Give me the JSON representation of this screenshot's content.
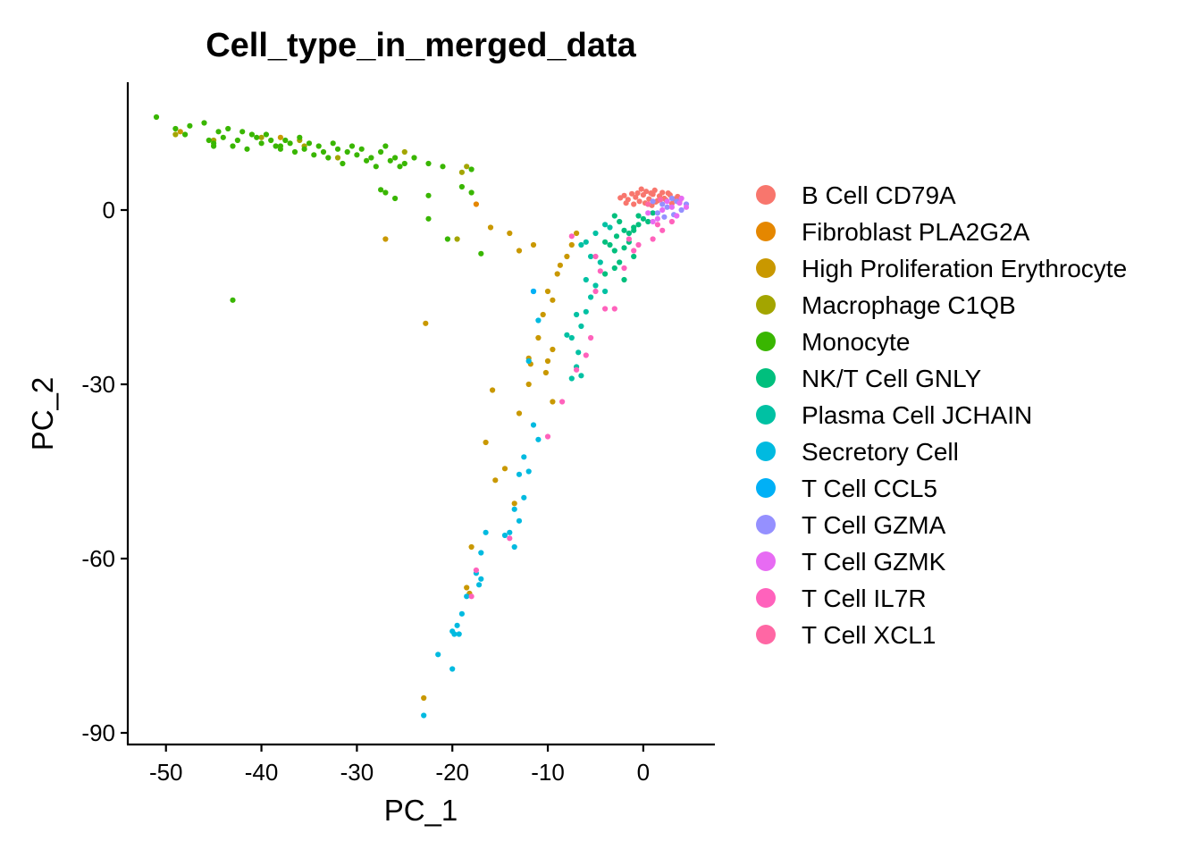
{
  "chart_data": {
    "type": "scatter",
    "title": "Cell_type_in_merged_data",
    "xlabel": "PC_1",
    "ylabel": "PC_2",
    "xlim": [
      -54,
      7.5
    ],
    "ylim": [
      -92,
      22
    ],
    "x_ticks": [
      -50,
      -40,
      -30,
      -20,
      -10,
      0
    ],
    "x_tick_labels": [
      "-50",
      "-40",
      "-30",
      "-20",
      "-10",
      "0"
    ],
    "y_ticks": [
      0,
      -30,
      -60,
      -90
    ],
    "y_tick_labels": [
      "0",
      "-30",
      "-60",
      "-90"
    ],
    "grid": false,
    "legend_position": "right",
    "series": [
      {
        "name": "B Cell CD79A",
        "color": "#F8766D",
        "points": [
          [
            -2.0,
            2.5
          ],
          [
            -1.6,
            1.8
          ],
          [
            -1.2,
            2.8
          ],
          [
            -0.8,
            2.2
          ],
          [
            -0.4,
            1.5
          ],
          [
            0.0,
            2.6
          ],
          [
            0.3,
            3.2
          ],
          [
            0.6,
            1.9
          ],
          [
            1.0,
            2.7
          ],
          [
            1.3,
            1.4
          ],
          [
            1.7,
            2.4
          ],
          [
            2.0,
            3.0
          ],
          [
            2.4,
            1.7
          ],
          [
            2.8,
            2.6
          ],
          [
            3.2,
            1.9
          ],
          [
            3.6,
            2.3
          ],
          [
            -1.8,
            1.2
          ],
          [
            -1.0,
            1.0
          ],
          [
            0.2,
            1.2
          ],
          [
            1.2,
            3.4
          ],
          [
            2.2,
            2.0
          ],
          [
            3.0,
            1.1
          ],
          [
            -0.2,
            3.6
          ],
          [
            0.8,
            2.9
          ],
          [
            1.5,
            1.6
          ],
          [
            2.6,
            2.9
          ],
          [
            -2.4,
            2.1
          ],
          [
            -0.6,
            2.9
          ],
          [
            3.8,
            1.5
          ],
          [
            0.9,
            0.8
          ]
        ]
      },
      {
        "name": "Fibroblast PLA2G2A",
        "color": "#E58700",
        "points": [
          [
            -17.5,
            1.0
          ]
        ]
      },
      {
        "name": "High Proliferation Erythrocyte",
        "color": "#C99800",
        "points": [
          [
            -48.5,
            13.5
          ],
          [
            -38.0,
            12.5
          ],
          [
            -22.8,
            -19.5
          ],
          [
            -27.0,
            -5.0
          ],
          [
            -16.0,
            -3.0
          ],
          [
            -14.0,
            -4.0
          ],
          [
            -13.0,
            -7.0
          ],
          [
            -11.5,
            -6.0
          ],
          [
            -9.0,
            -11.0
          ],
          [
            -8.0,
            -8.0
          ],
          [
            -7.5,
            -6.0
          ],
          [
            -7.0,
            -4.0
          ],
          [
            -10.0,
            -14.0
          ],
          [
            -9.5,
            -15.5
          ],
          [
            -10.5,
            -18.0
          ],
          [
            -11.0,
            -22.0
          ],
          [
            -12.0,
            -25.5
          ],
          [
            -11.8,
            -26.5
          ],
          [
            -10.0,
            -26.0
          ],
          [
            -9.5,
            -24.0
          ],
          [
            -10.2,
            -28.0
          ],
          [
            -15.8,
            -31.0
          ],
          [
            -13.0,
            -35.0
          ],
          [
            -15.5,
            -46.5
          ],
          [
            -14.5,
            -44.5
          ],
          [
            -13.5,
            -50.5
          ],
          [
            -18.0,
            -58.0
          ],
          [
            -18.5,
            -65.0
          ],
          [
            -18.2,
            -66.0
          ],
          [
            -23.0,
            -84.0
          ],
          [
            -9.5,
            -33.0
          ],
          [
            -8.7,
            -9.5
          ],
          [
            -12.0,
            -30.0
          ],
          [
            -16.5,
            -40.0
          ]
        ]
      },
      {
        "name": "Macrophage C1QB",
        "color": "#A3A500",
        "points": [
          [
            -49.0,
            13.0
          ],
          [
            -45.0,
            12.0
          ],
          [
            -40.0,
            12.5
          ],
          [
            -35.5,
            11.0
          ],
          [
            -32.0,
            9.0
          ],
          [
            -25.0,
            10.0
          ],
          [
            -19.0,
            6.5
          ],
          [
            -18.5,
            7.5
          ],
          [
            -19.5,
            -5.0
          ],
          [
            -36.0,
            12.0
          ]
        ]
      },
      {
        "name": "Monocyte",
        "color": "#39B600",
        "points": [
          [
            -51.0,
            16.0
          ],
          [
            -49.0,
            14.0
          ],
          [
            -48.0,
            13.0
          ],
          [
            -47.5,
            14.5
          ],
          [
            -46.0,
            15.0
          ],
          [
            -45.5,
            12.0
          ],
          [
            -45.0,
            11.5
          ],
          [
            -44.5,
            13.5
          ],
          [
            -44.0,
            12.5
          ],
          [
            -43.5,
            14.0
          ],
          [
            -43.0,
            11.0
          ],
          [
            -42.5,
            12.0
          ],
          [
            -42.0,
            13.5
          ],
          [
            -41.5,
            10.5
          ],
          [
            -41.0,
            13.0
          ],
          [
            -40.5,
            12.5
          ],
          [
            -40.0,
            11.5
          ],
          [
            -39.5,
            13.0
          ],
          [
            -39.0,
            12.0
          ],
          [
            -38.5,
            11.0
          ],
          [
            -38.0,
            10.5
          ],
          [
            -37.5,
            12.0
          ],
          [
            -37.0,
            11.5
          ],
          [
            -36.5,
            10.0
          ],
          [
            -36.0,
            12.5
          ],
          [
            -35.5,
            10.5
          ],
          [
            -35.0,
            11.5
          ],
          [
            -34.5,
            9.5
          ],
          [
            -34.0,
            11.0
          ],
          [
            -33.5,
            10.0
          ],
          [
            -33.0,
            9.0
          ],
          [
            -32.5,
            11.5
          ],
          [
            -32.0,
            10.5
          ],
          [
            -31.5,
            8.0
          ],
          [
            -31.0,
            10.0
          ],
          [
            -30.5,
            11.0
          ],
          [
            -30.0,
            9.5
          ],
          [
            -29.5,
            10.5
          ],
          [
            -29.0,
            8.5
          ],
          [
            -28.5,
            9.0
          ],
          [
            -28.0,
            7.5
          ],
          [
            -27.5,
            10.0
          ],
          [
            -27.0,
            11.0
          ],
          [
            -26.5,
            8.5
          ],
          [
            -26.0,
            9.0
          ],
          [
            -25.5,
            7.5
          ],
          [
            -25.0,
            8.0
          ],
          [
            -24.0,
            9.0
          ],
          [
            -22.5,
            8.0
          ],
          [
            -21.0,
            7.5
          ],
          [
            -18.0,
            7.0
          ],
          [
            -27.5,
            3.5
          ],
          [
            -27.0,
            3.0
          ],
          [
            -26.0,
            2.0
          ],
          [
            -22.5,
            2.5
          ],
          [
            -19.0,
            4.0
          ],
          [
            -18.0,
            3.0
          ],
          [
            -22.5,
            -1.5
          ],
          [
            -20.5,
            -5.0
          ],
          [
            -17.0,
            -7.5
          ],
          [
            -43.0,
            -15.5
          ],
          [
            -38.0,
            11.0
          ],
          [
            -45.0,
            11.0
          ]
        ]
      },
      {
        "name": "NK/T Cell GNLY",
        "color": "#00BF7D",
        "points": [
          [
            -3.0,
            -1.0
          ],
          [
            -2.5,
            -2.0
          ],
          [
            -2.0,
            -3.5
          ],
          [
            -1.5,
            -4.0
          ],
          [
            -1.0,
            -3.0
          ],
          [
            -0.5,
            -2.5
          ],
          [
            0.0,
            -1.5
          ],
          [
            0.5,
            -2.0
          ],
          [
            -3.5,
            -6.0
          ],
          [
            -4.0,
            -5.5
          ],
          [
            -3.0,
            -7.0
          ],
          [
            -2.0,
            -6.5
          ],
          [
            -1.5,
            -5.5
          ],
          [
            -1.0,
            -8.0
          ],
          [
            -2.5,
            -9.0
          ],
          [
            -3.0,
            -10.0
          ],
          [
            -4.0,
            -11.0
          ],
          [
            -2.0,
            -12.0
          ],
          [
            -1.0,
            -3.5
          ],
          [
            -0.5,
            -1.0
          ],
          [
            1.0,
            -0.5
          ],
          [
            -2.8,
            -4.5
          ]
        ]
      },
      {
        "name": "Plasma Cell JCHAIN",
        "color": "#00C1A3",
        "points": [
          [
            -4.0,
            -2.5
          ],
          [
            -3.5,
            -3.0
          ],
          [
            -5.0,
            -4.0
          ],
          [
            -6.0,
            -5.5
          ],
          [
            -6.5,
            -6.0
          ],
          [
            -5.5,
            -8.0
          ],
          [
            -6.0,
            -12.0
          ],
          [
            -5.0,
            -13.0
          ],
          [
            -5.5,
            -15.0
          ],
          [
            -6.0,
            -17.5
          ],
          [
            -7.0,
            -18.0
          ],
          [
            -6.5,
            -20.0
          ],
          [
            -7.5,
            -22.0
          ],
          [
            -8.0,
            -21.5
          ],
          [
            -7.0,
            -27.0
          ],
          [
            -6.5,
            -28.5
          ],
          [
            -7.5,
            -29.0
          ],
          [
            -4.5,
            -9.0
          ],
          [
            -4.0,
            -14.0
          ],
          [
            -6.8,
            -24.5
          ]
        ]
      },
      {
        "name": "Secretory Cell",
        "color": "#00BAE0",
        "points": [
          [
            -11.5,
            -14.0
          ],
          [
            -11.0,
            -19.0
          ],
          [
            -12.0,
            -26.0
          ],
          [
            -11.5,
            -37.0
          ],
          [
            -11.0,
            -39.5
          ],
          [
            -12.5,
            -42.5
          ],
          [
            -13.0,
            -45.5
          ],
          [
            -12.0,
            -45.0
          ],
          [
            -12.5,
            -49.5
          ],
          [
            -13.5,
            -51.5
          ],
          [
            -13.0,
            -53.5
          ],
          [
            -14.0,
            -55.5
          ],
          [
            -14.5,
            -56.0
          ],
          [
            -13.5,
            -58.0
          ],
          [
            -16.5,
            -55.5
          ],
          [
            -17.0,
            -59.0
          ],
          [
            -17.5,
            -62.5
          ],
          [
            -17.0,
            -63.5
          ],
          [
            -17.2,
            -64.5
          ],
          [
            -18.5,
            -66.5
          ],
          [
            -19.0,
            -69.5
          ],
          [
            -19.5,
            -71.5
          ],
          [
            -20.0,
            -72.5
          ],
          [
            -19.8,
            -73.0
          ],
          [
            -19.3,
            -73.0
          ],
          [
            -21.5,
            -76.5
          ],
          [
            -20.0,
            -79.0
          ],
          [
            -23.0,
            -87.0
          ]
        ]
      },
      {
        "name": "T Cell CCL5",
        "color": "#00B0F6",
        "points": [
          [
            -11.5,
            -14.0
          ]
        ]
      },
      {
        "name": "T Cell GZMA",
        "color": "#9590FF",
        "points": [
          [
            1.5,
            -0.5
          ],
          [
            2.0,
            1.0
          ],
          [
            2.5,
            0.5
          ],
          [
            3.0,
            2.0
          ],
          [
            3.5,
            1.5
          ],
          [
            4.0,
            0.0
          ],
          [
            4.5,
            1.0
          ],
          [
            1.0,
            1.5
          ],
          [
            3.2,
            -0.8
          ],
          [
            2.2,
            -1.2
          ]
        ]
      },
      {
        "name": "T Cell GZMK",
        "color": "#E76BF3",
        "points": [
          [
            2.0,
            0.0
          ],
          [
            2.5,
            1.5
          ],
          [
            3.0,
            0.5
          ],
          [
            3.5,
            -1.0
          ],
          [
            4.0,
            2.0
          ],
          [
            4.5,
            0.5
          ],
          [
            1.5,
            -1.5
          ],
          [
            1.0,
            -2.0
          ],
          [
            0.5,
            -0.5
          ],
          [
            3.8,
            1.2
          ]
        ]
      },
      {
        "name": "T Cell IL7R",
        "color": "#FF62BC",
        "points": [
          [
            -7.5,
            -4.5
          ],
          [
            -5.0,
            -8.0
          ],
          [
            -4.5,
            -10.5
          ],
          [
            -5.0,
            -14.0
          ],
          [
            -3.0,
            -17.0
          ],
          [
            -4.0,
            -17.0
          ],
          [
            -5.5,
            -22.0
          ],
          [
            -6.0,
            -25.0
          ],
          [
            -7.0,
            -27.5
          ],
          [
            -8.5,
            -33.0
          ],
          [
            -10.0,
            -39.0
          ],
          [
            -14.0,
            -56.5
          ],
          [
            -17.5,
            -62.0
          ],
          [
            -18.0,
            -66.5
          ],
          [
            -1.5,
            -5.0
          ],
          [
            -0.5,
            -6.0
          ],
          [
            1.0,
            -5.0
          ],
          [
            2.0,
            -3.5
          ],
          [
            3.0,
            -2.0
          ],
          [
            1.5,
            -2.5
          ],
          [
            -1.0,
            -7.0
          ],
          [
            -2.0,
            -10.0
          ]
        ]
      },
      {
        "name": "T Cell XCL1",
        "color": "#FF67A4",
        "points": [
          [
            0.5,
            1.0
          ],
          [
            1.8,
            1.8
          ]
        ]
      }
    ]
  }
}
